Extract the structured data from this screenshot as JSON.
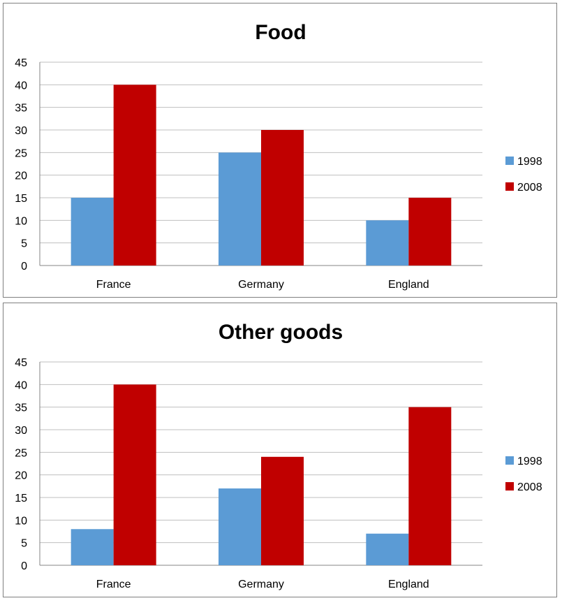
{
  "chart_data": [
    {
      "type": "bar",
      "title": "Food",
      "categories": [
        "France",
        "Germany",
        "England"
      ],
      "series": [
        {
          "name": "1998",
          "values": [
            15,
            25,
            10
          ],
          "color": "#5b9bd5"
        },
        {
          "name": "2008",
          "values": [
            40,
            30,
            15
          ],
          "color": "#c00000"
        }
      ],
      "ylim": [
        0,
        45
      ],
      "yticks": [
        "0",
        "5",
        "10",
        "15",
        "20",
        "25",
        "30",
        "35",
        "40",
        "45"
      ],
      "xlabel": "",
      "ylabel": "",
      "grid": true,
      "legend": "right"
    },
    {
      "type": "bar",
      "title": "Other goods",
      "categories": [
        "France",
        "Germany",
        "England"
      ],
      "series": [
        {
          "name": "1998",
          "values": [
            8,
            17,
            7
          ],
          "color": "#5b9bd5"
        },
        {
          "name": "2008",
          "values": [
            40,
            24,
            35
          ],
          "color": "#c00000"
        }
      ],
      "ylim": [
        0,
        45
      ],
      "yticks": [
        "0",
        "5",
        "10",
        "15",
        "20",
        "25",
        "30",
        "35",
        "40",
        "45"
      ],
      "xlabel": "",
      "ylabel": "",
      "grid": true,
      "legend": "right"
    }
  ]
}
